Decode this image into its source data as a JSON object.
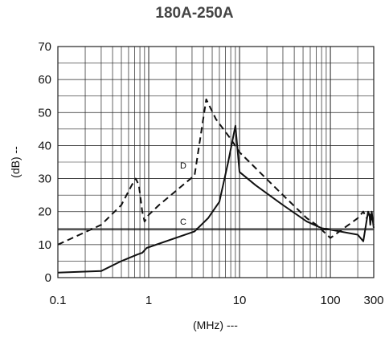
{
  "chart_data": {
    "type": "line",
    "title": "180A-250A",
    "xlabel": "(MHz) ---",
    "ylabel": "(dB) --",
    "xscale": "log",
    "xlim": [
      0.1,
      300
    ],
    "ylim": [
      0,
      70
    ],
    "xticks": [
      {
        "value": 0.1,
        "label": "0.1"
      },
      {
        "value": 1,
        "label": "1"
      },
      {
        "value": 10,
        "label": "10"
      },
      {
        "value": 100,
        "label": "100"
      },
      {
        "value": 300,
        "label": "300"
      }
    ],
    "yticks": [
      0,
      10,
      20,
      30,
      40,
      50,
      60,
      70
    ],
    "grid": true,
    "colors": {
      "line": "#111111",
      "grid": "#222222",
      "axis_text": "#111111"
    },
    "series": [
      {
        "name": "D",
        "style": "dashed",
        "points": [
          [
            0.1,
            10
          ],
          [
            0.3,
            16
          ],
          [
            0.5,
            22
          ],
          [
            0.65,
            28
          ],
          [
            0.72,
            30
          ],
          [
            0.78,
            28
          ],
          [
            0.85,
            20
          ],
          [
            0.9,
            17
          ],
          [
            1.0,
            19
          ],
          [
            1.3,
            22
          ],
          [
            3.2,
            31
          ],
          [
            4.3,
            54
          ],
          [
            5.5,
            48
          ],
          [
            8,
            42
          ],
          [
            10,
            38
          ],
          [
            30,
            25
          ],
          [
            55,
            18
          ],
          [
            70,
            16
          ],
          [
            100,
            12
          ],
          [
            200,
            18
          ],
          [
            230,
            20
          ],
          [
            250,
            18
          ],
          [
            270,
            20
          ],
          [
            280,
            19
          ],
          [
            290,
            17
          ],
          [
            300,
            16
          ]
        ]
      },
      {
        "name": "C",
        "style": "solid-level",
        "points": [
          [
            0.1,
            14.5
          ],
          [
            300,
            14.5
          ]
        ]
      },
      {
        "name": "",
        "style": "solid",
        "points": [
          [
            0.1,
            1.5
          ],
          [
            0.3,
            2
          ],
          [
            0.5,
            5
          ],
          [
            0.75,
            7
          ],
          [
            0.85,
            7.5
          ],
          [
            0.95,
            9
          ],
          [
            3.2,
            14
          ],
          [
            4.5,
            18
          ],
          [
            6,
            23
          ],
          [
            7.5,
            35
          ],
          [
            9,
            46
          ],
          [
            10,
            32
          ],
          [
            15,
            28
          ],
          [
            30,
            22
          ],
          [
            55,
            17
          ],
          [
            80,
            15
          ],
          [
            200,
            13
          ],
          [
            230,
            11
          ],
          [
            260,
            20
          ],
          [
            270,
            19
          ],
          [
            275,
            16
          ],
          [
            280,
            18
          ],
          [
            285,
            20
          ],
          [
            300,
            15
          ]
        ]
      }
    ]
  }
}
